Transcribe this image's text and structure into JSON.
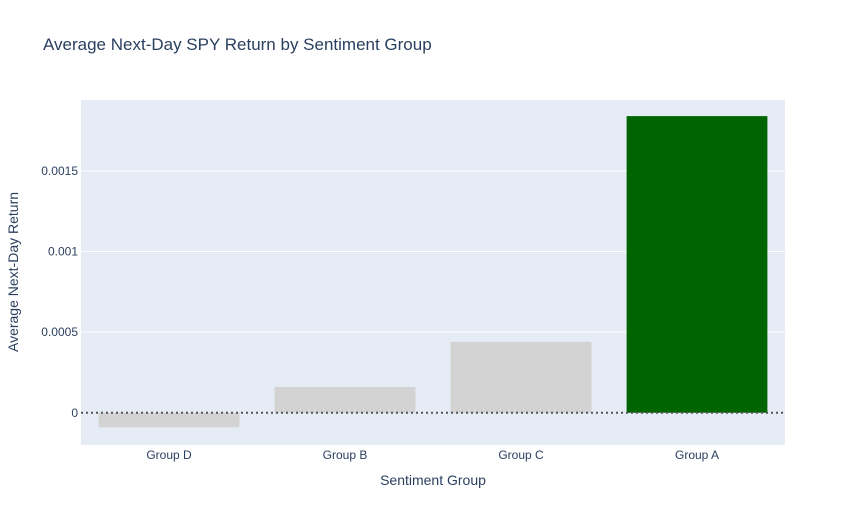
{
  "chart_data": {
    "type": "bar",
    "title": "Average Next-Day SPY Return by Sentiment Group",
    "xlabel": "Sentiment Group",
    "ylabel": "Average Next-Day Return",
    "categories": [
      "Group D",
      "Group B",
      "Group C",
      "Group A"
    ],
    "values": [
      -9e-05,
      0.00016,
      0.00044,
      0.00184
    ],
    "colors": [
      "#d3d3d3",
      "#d3d3d3",
      "#d3d3d3",
      "#006400"
    ],
    "ylim": [
      -0.0002,
      0.00194
    ],
    "yticks": [
      0,
      0.0005,
      0.001,
      0.0015
    ],
    "ytick_labels": [
      "0",
      "0.0005",
      "0.001",
      "0.0015"
    ],
    "zero_line": {
      "style": "dotted",
      "color": "#555555",
      "value": 0
    },
    "plot_bg": "#e5ecf6",
    "grid_color": "#ffffff",
    "text_color": "#2a3f5f",
    "grid": true,
    "legend": "none"
  }
}
